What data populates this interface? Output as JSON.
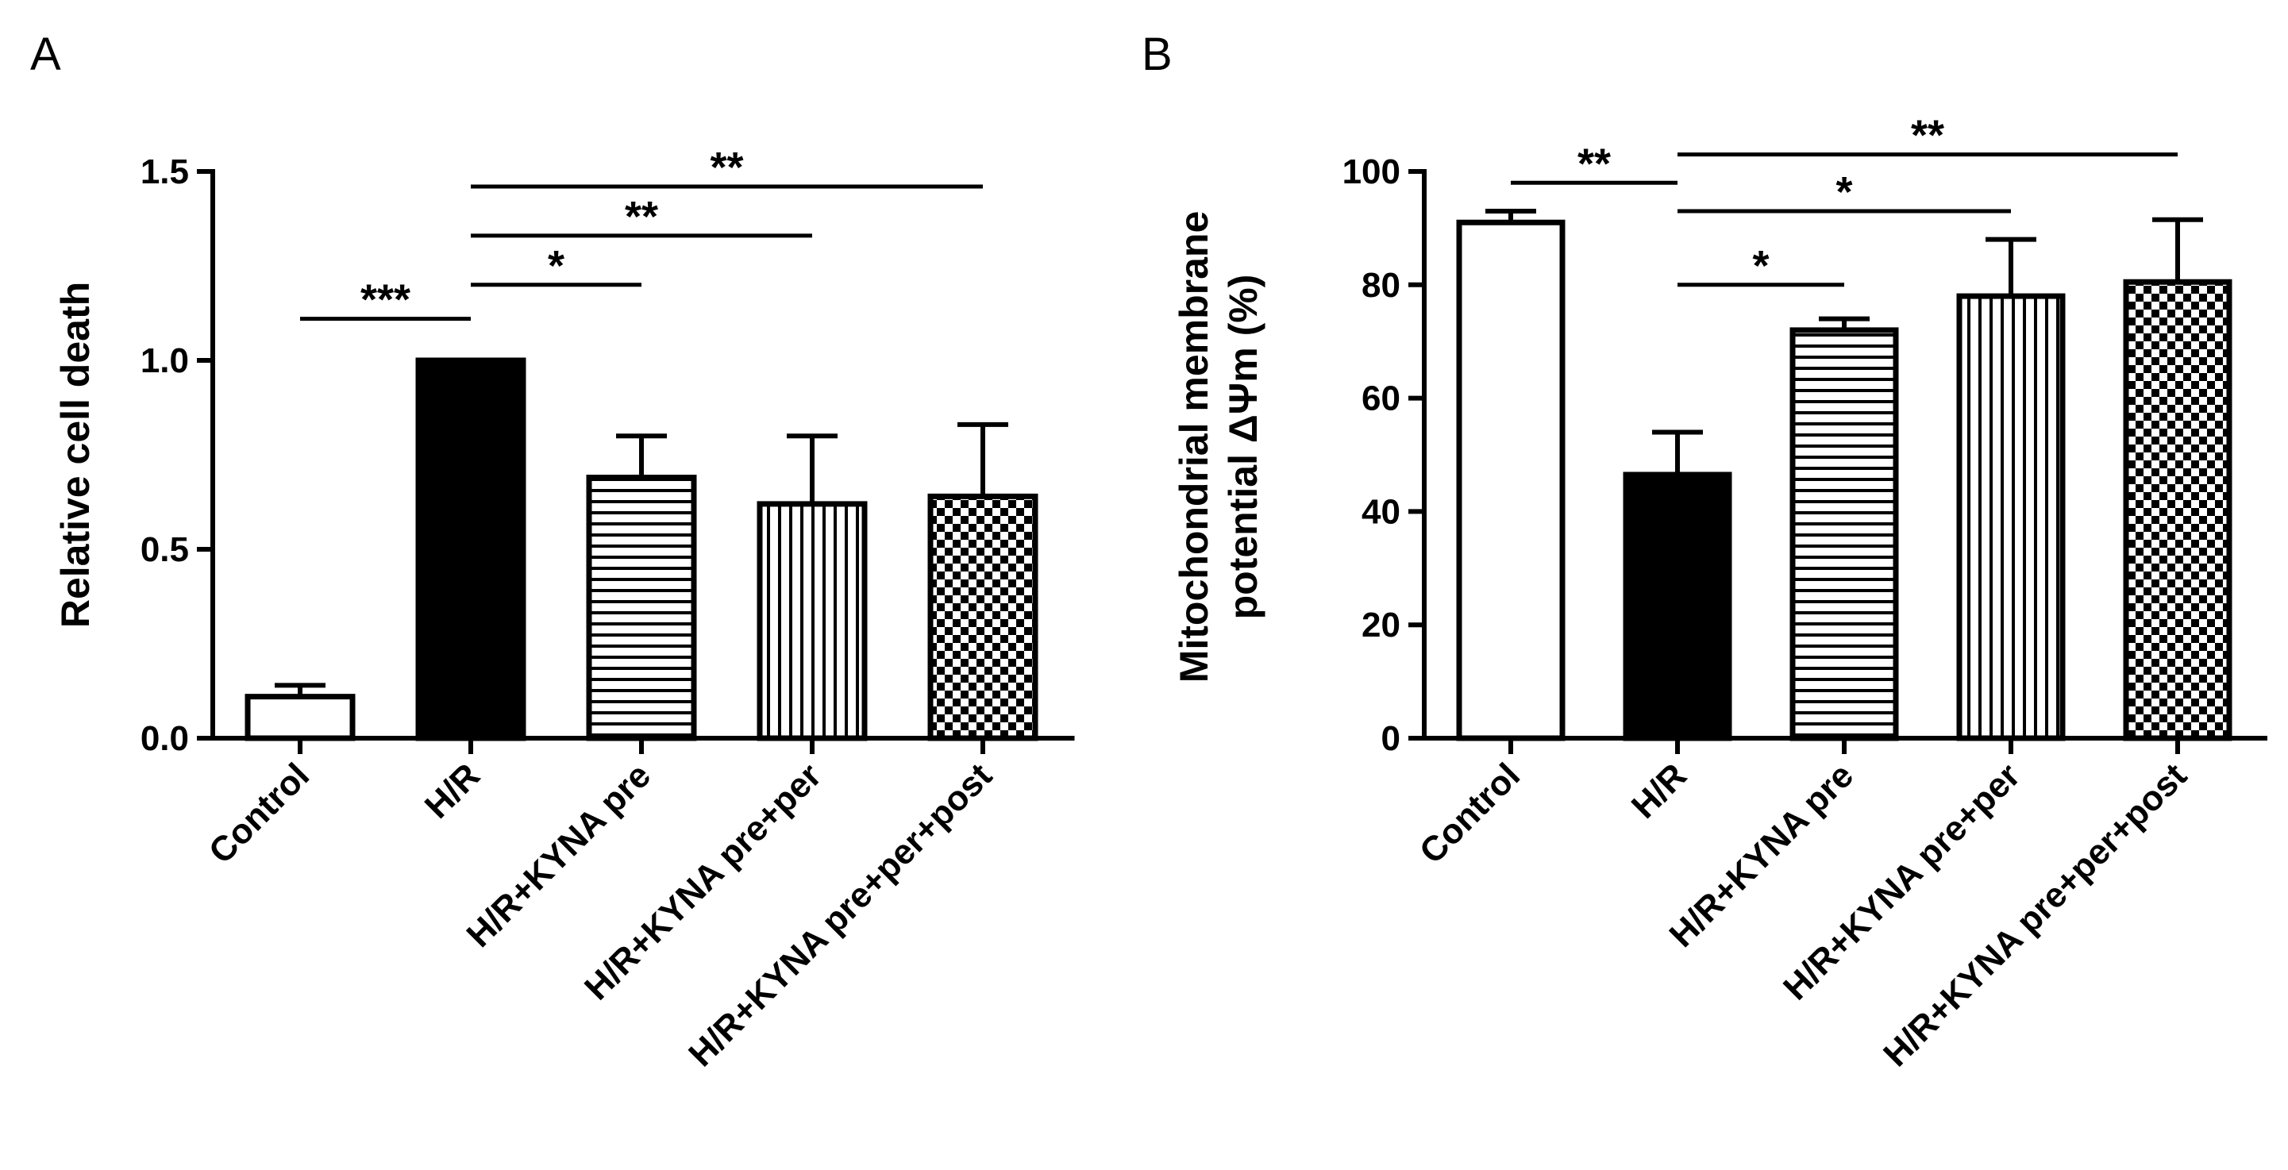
{
  "chart_data": [
    {
      "panel": "A",
      "type": "bar",
      "ylabel": "Relative cell death",
      "ylabel_lines": [
        "Relative cell death"
      ],
      "ylim": [
        0,
        1.5
      ],
      "yticks": [
        "0.0",
        "0.5",
        "1.0",
        "1.5"
      ],
      "categories": [
        "Control",
        "H/R",
        "H/R+KYNA pre",
        "H/R+KYNA pre+per",
        "H/R+KYNA pre+per+post"
      ],
      "values": [
        0.11,
        1.0,
        0.69,
        0.62,
        0.64
      ],
      "errors": [
        0.03,
        0,
        0.11,
        0.18,
        0.19
      ],
      "fills": [
        "white",
        "black",
        "hlines",
        "vlines",
        "checker"
      ],
      "significance": [
        {
          "from": 0,
          "to": 1,
          "label": "***",
          "y": 1.11
        },
        {
          "from": 1,
          "to": 2,
          "label": "*",
          "y": 1.2
        },
        {
          "from": 1,
          "to": 3,
          "label": "**",
          "y": 1.33
        },
        {
          "from": 1,
          "to": 4,
          "label": "**",
          "y": 1.46
        }
      ]
    },
    {
      "panel": "B",
      "type": "bar",
      "ylabel": "Mitochondrial membrane potential ΔΨm (%)",
      "ylabel_lines": [
        "Mitochondrial membrane",
        "potential ΔΨm (%)"
      ],
      "ylim": [
        0,
        100
      ],
      "yticks": [
        "0",
        "20",
        "40",
        "60",
        "80",
        "100"
      ],
      "categories": [
        "Control",
        "H/R",
        "H/R+KYNA pre",
        "H/R+KYNA pre+per",
        "H/R+KYNA pre+per+post"
      ],
      "values": [
        91,
        46.5,
        72,
        78,
        80.5
      ],
      "errors": [
        2,
        7.5,
        2,
        10,
        11
      ],
      "fills": [
        "white",
        "black",
        "hlines",
        "vlines",
        "checker"
      ],
      "significance": [
        {
          "from": 0,
          "to": 1,
          "label": "**",
          "y": 98
        },
        {
          "from": 1,
          "to": 2,
          "label": "*",
          "y": 80
        },
        {
          "from": 1,
          "to": 3,
          "label": "*",
          "y": 93
        },
        {
          "from": 1,
          "to": 4,
          "label": "**",
          "y": 103
        }
      ]
    }
  ]
}
